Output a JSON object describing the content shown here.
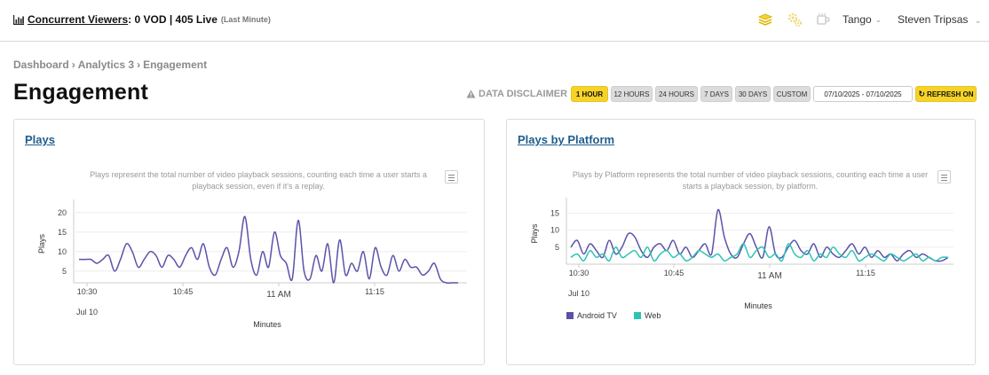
{
  "header": {
    "concurrent_label": "Concurrent Viewers",
    "concurrent_value": ": 0 VOD | 405 Live",
    "concurrent_note": "(Last Minute)",
    "icons": [
      "layers-icon",
      "gears-icon",
      "cup-icon"
    ],
    "tenant": "Tango",
    "user": "Steven Tripsas"
  },
  "breadcrumb": [
    "Dashboard",
    "Analytics 3",
    "Engagement"
  ],
  "page_title": "Engagement",
  "toolbar": {
    "disclaimer": "DATA DISCLAIMER",
    "ranges": [
      "1 HOUR",
      "12 HOURS",
      "24 HOURS",
      "7 DAYS",
      "30 DAYS",
      "CUSTOM"
    ],
    "active_range": "1 HOUR",
    "date_range": "07/10/2025 - 07/10/2025",
    "refresh_label": "REFRESH ON"
  },
  "colors": {
    "accent": "#f6d328",
    "link": "#1f5d8c",
    "android_tv": "#5a52a8",
    "web": "#2cc3b5"
  },
  "chart_data": [
    {
      "type": "line",
      "title": "Plays",
      "description": "Plays represent the total number of video playback sessions, counting each time a user starts a playback session, even if it's a replay.",
      "xlabel": "Minutes",
      "ylabel": "Plays",
      "x_ticks": [
        "10:30",
        "10:45",
        "11 AM",
        "11:15"
      ],
      "x_tick_sub": "Jul 10",
      "y_ticks": [
        5,
        10,
        15,
        20
      ],
      "ylim": [
        2,
        22
      ],
      "grid": true,
      "series": [
        {
          "values": [
            8,
            8,
            8,
            7,
            8,
            9,
            5,
            8,
            12,
            10,
            6,
            8,
            10,
            9,
            6,
            9,
            8,
            6,
            9,
            11,
            8,
            12,
            6,
            4,
            8,
            11,
            6,
            10,
            19,
            8,
            4,
            10,
            6,
            15,
            9,
            7,
            3,
            18,
            5,
            3,
            9,
            5,
            12,
            2,
            13,
            4,
            7,
            5,
            10,
            3,
            11,
            6,
            4,
            9,
            5,
            8,
            6,
            6,
            4,
            5,
            7,
            3,
            2,
            2,
            2
          ]
        }
      ]
    },
    {
      "type": "line",
      "title": "Plays by Platform",
      "description": "Plays by Platform represents the total number of video playback sessions, counting each time a user starts a playback session, by platform.",
      "xlabel": "Minutes",
      "ylabel": "Plays",
      "x_ticks": [
        "10:30",
        "10:45",
        "11 AM",
        "11:15"
      ],
      "x_tick_sub": "Jul 10",
      "y_ticks": [
        5,
        10,
        15
      ],
      "ylim": [
        0,
        18
      ],
      "grid": true,
      "legend": "bottom-left",
      "series": [
        {
          "name": "Android TV",
          "values": [
            5,
            7,
            3,
            6,
            4,
            2,
            7,
            3,
            5,
            9,
            8,
            4,
            2,
            5,
            6,
            4,
            7,
            3,
            5,
            2,
            4,
            6,
            3,
            16,
            8,
            3,
            2,
            6,
            9,
            5,
            2,
            11,
            3,
            2,
            5,
            7,
            4,
            3,
            6,
            2,
            5,
            3,
            2,
            4,
            6,
            3,
            5,
            2,
            4,
            2,
            3,
            1,
            3,
            4,
            2,
            3,
            2,
            1,
            1,
            2
          ]
        },
        {
          "name": "Web",
          "values": [
            2,
            3,
            1,
            4,
            2,
            3,
            1,
            5,
            2,
            3,
            4,
            2,
            5,
            1,
            3,
            4,
            2,
            3,
            1,
            2,
            4,
            3,
            2,
            3,
            1,
            2,
            3,
            6,
            2,
            4,
            5,
            2,
            3,
            1,
            6,
            3,
            2,
            4,
            1,
            3,
            2,
            5,
            3,
            2,
            4,
            1,
            2,
            3,
            2,
            1,
            3,
            2,
            1,
            2,
            3,
            1,
            2,
            1,
            2,
            2
          ]
        }
      ]
    }
  ]
}
